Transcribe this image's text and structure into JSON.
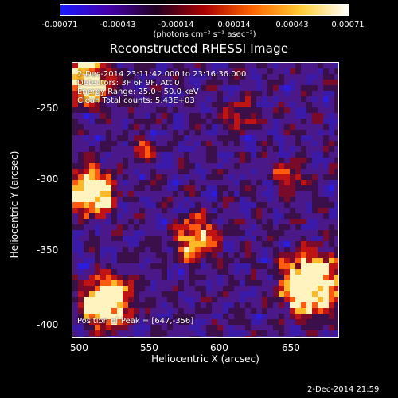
{
  "colorbar": {
    "labels": [
      "-0.00071",
      "-0.00043",
      "-0.00014",
      "0.00014",
      "0.00043",
      "0.00071"
    ],
    "units": "(photons cm⁻² s⁻¹ asec⁻²)",
    "colors": [
      "#1a1aff",
      "#4400aa",
      "#220022",
      "#aa0000",
      "#ff6600",
      "#ffcc33",
      "#ffffff"
    ]
  },
  "title": "Reconstructed RHESSI Image",
  "annotations": {
    "time_range": "2-Dec-2014 23:11:42.000 to 23:16:36.000",
    "detectors": "Detectors: 3F 6F 9F, Att 0",
    "energy": "Energy Range: 25.0 - 50.0 keV",
    "clean": "Clean    Total counts: 5.43E+03",
    "peak": "Position of Peak = [647,-356]"
  },
  "axes": {
    "xlabel": "Heliocentric X (arcsec)",
    "ylabel": "Heliocentric Y (arcsec)",
    "xticks": [
      "500",
      "550",
      "600",
      "650"
    ],
    "yticks": [
      "-250",
      "-300",
      "-350",
      "-400"
    ],
    "xlim": [
      488,
      680
    ],
    "ylim": [
      -410,
      -215
    ]
  },
  "footer": "2-Dec-2014 21:59"
}
